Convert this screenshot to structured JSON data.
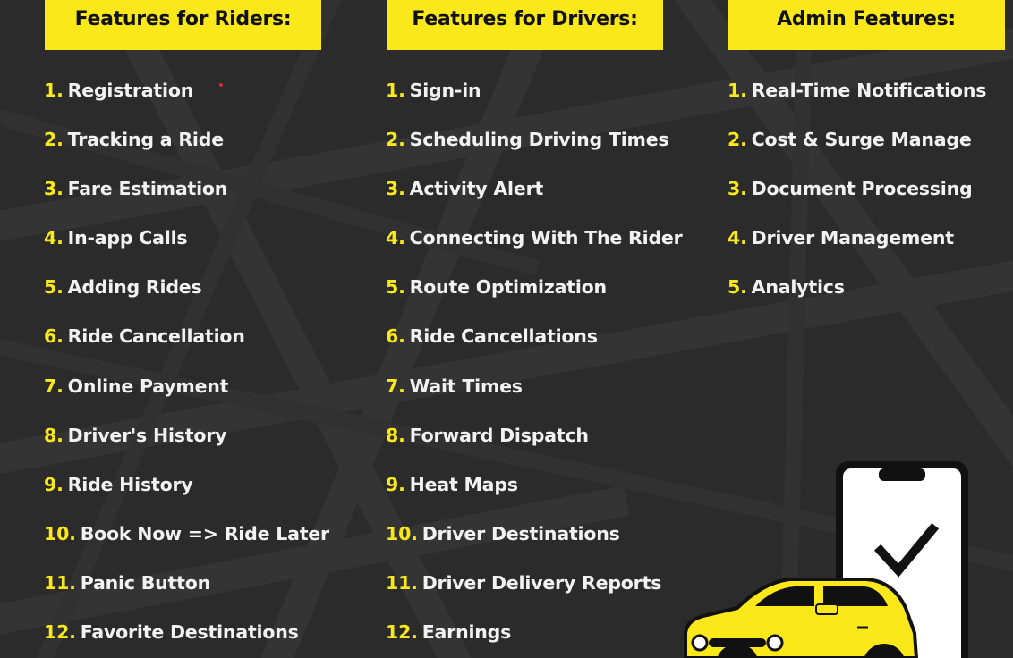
{
  "columns": [
    {
      "header": "Features for Riders:",
      "items": [
        {
          "num": "1.",
          "text": "Registration"
        },
        {
          "num": "2.",
          "text": "Tracking a Ride"
        },
        {
          "num": "3.",
          "text": "Fare Estimation"
        },
        {
          "num": "4.",
          "text": "In-app Calls"
        },
        {
          "num": "5.",
          "text": "Adding Rides"
        },
        {
          "num": "6.",
          "text": "Ride Cancellation"
        },
        {
          "num": "7.",
          "text": "Online Payment"
        },
        {
          "num": "8.",
          "text": "Driver's History"
        },
        {
          "num": "9.",
          "text": "Ride History"
        },
        {
          "num": "10.",
          "text": "Book Now => Ride Later"
        },
        {
          "num": "11.",
          "text": "Panic Button"
        },
        {
          "num": "12.",
          "text": "Favorite Destinations"
        }
      ]
    },
    {
      "header": "Features for Drivers:",
      "items": [
        {
          "num": "1.",
          "text": "Sign-in"
        },
        {
          "num": "2.",
          "text": "Scheduling Driving Times"
        },
        {
          "num": "3.",
          "text": "Activity Alert"
        },
        {
          "num": "4.",
          "text": "Connecting With The Rider"
        },
        {
          "num": "5.",
          "text": "Route Optimization"
        },
        {
          "num": "6.",
          "text": "Ride Cancellations"
        },
        {
          "num": "7.",
          "text": "Wait Times"
        },
        {
          "num": "8.",
          "text": "Forward Dispatch"
        },
        {
          "num": "9.",
          "text": "Heat Maps"
        },
        {
          "num": "10.",
          "text": "Driver Destinations"
        },
        {
          "num": "11.",
          "text": "Driver Delivery Reports"
        },
        {
          "num": "12.",
          "text": "Earnings"
        }
      ]
    },
    {
      "header": "Admin Features:",
      "items": [
        {
          "num": "1.",
          "text": "Real-Time Notifications"
        },
        {
          "num": "2.",
          "text": "Cost & Surge Manage"
        },
        {
          "num": "3.",
          "text": "Document Processing"
        },
        {
          "num": "4.",
          "text": "Driver Management"
        },
        {
          "num": "5.",
          "text": "Analytics"
        }
      ]
    }
  ],
  "colors": {
    "background": "#2b2b2b",
    "accent_yellow": "#fbe81a",
    "text": "#f2f2f2",
    "header_text": "#111111"
  },
  "illustration": {
    "icons": [
      "smartphone-icon",
      "checkmark-icon",
      "taxi-car-icon"
    ]
  }
}
